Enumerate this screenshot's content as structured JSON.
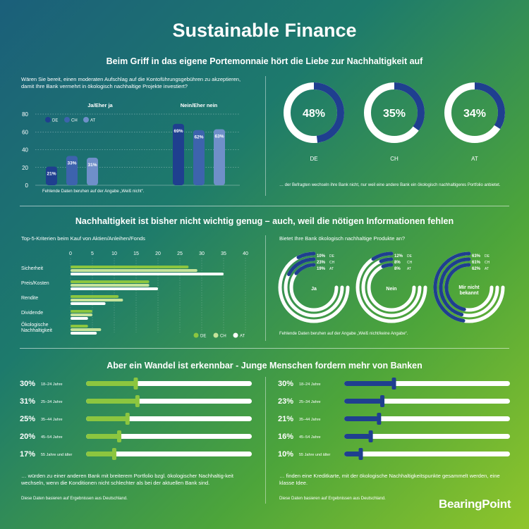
{
  "title": "Sustainable Finance",
  "colors": {
    "DE": "#1f3f8f",
    "CH": "#3d63ad",
    "AT": "#6f8fc9",
    "green": "#8cc63f",
    "lightgreen": "#c6e39a",
    "white": "#ffffff",
    "track": "#ffffff"
  },
  "section1": {
    "heading": "Beim Griff in das eigene Portemonnaie hört die Liebe zur Nachhaltigkeit auf",
    "question": "Wären Sie bereit, einen moderaten Aufschlag auf die Kontoführungsgebühren zu akzeptieren, damit Ihre Bank vermehrt in ökologisch nachhaltige Projekte investiert?",
    "footnote": "Fehlende Daten beruhen auf der Angabe „Weiß nicht“.",
    "donut_caption": "… der Befragten wechseln ihre Bank nicht, nur weil eine andere Bank ein ökologisch nachhaltigeres Portfolio anbietet."
  },
  "section2": {
    "heading": "Nachhaltigkeit ist bisher nicht wichtig genug – auch, weil die nötigen Informationen fehlen",
    "left_title": "Top-5-Kriterien beim Kauf von Aktien/Anleihen/Fonds",
    "right_title": "Bietet Ihre Bank ökologisch nachhaltige Produkte an?",
    "footnote": "Fehlende Daten beruhen auf der Angabe „Weiß nicht/keine Angabe“."
  },
  "section3": {
    "heading": "Aber ein Wandel ist erkennbar - Junge Menschen fordern mehr von Banken",
    "left_caption": "… würden zu einer anderen Bank mit breiterem Portfolio bzgl. ökologischer Nachhaltig-keit wechseln, wenn die Konditionen nicht schlechter als bei der aktuellen Bank sind.",
    "right_caption": "… finden eine Kreditkarte, mit der ökologische Nachhaltigkeitspunkte gesammelt werden, eine klasse Idee.",
    "left_note": "Diese Daten basieren auf Ergebnissen aus Deutschland.",
    "right_note": "Diese Daten basieren auf Ergebnissen aus Deutschland."
  },
  "logo": "BearingPoint",
  "chart_data": [
    {
      "type": "bar",
      "groups": [
        "Ja/Eher ja",
        "Nein/Eher nein"
      ],
      "series": [
        {
          "name": "DE",
          "values": [
            21,
            69
          ]
        },
        {
          "name": "CH",
          "values": [
            33,
            62
          ]
        },
        {
          "name": "AT",
          "values": [
            31,
            63
          ]
        }
      ],
      "ylim": [
        0,
        80
      ],
      "yticks": [
        0,
        20,
        40,
        60,
        80
      ]
    },
    {
      "type": "pie",
      "donuts": [
        {
          "label": "DE",
          "value": 48,
          "text": "48%"
        },
        {
          "label": "CH",
          "value": 35,
          "text": "35%"
        },
        {
          "label": "AT",
          "value": 34,
          "text": "34%"
        }
      ]
    },
    {
      "type": "bar",
      "orientation": "horizontal",
      "categories": [
        "Sicherheit",
        "Preis/Kosten",
        "Rendite",
        "Dividende",
        "Ökologische Nachhaltigkeit"
      ],
      "series": [
        {
          "name": "DE",
          "values": [
            27,
            18,
            11,
            5,
            4
          ]
        },
        {
          "name": "CH",
          "values": [
            29,
            18,
            12,
            5,
            7
          ]
        },
        {
          "name": "AT",
          "values": [
            35,
            20,
            8,
            4,
            6
          ]
        }
      ],
      "xlim": [
        0,
        40
      ],
      "xticks": [
        0,
        5,
        10,
        15,
        20,
        25,
        30,
        35,
        40
      ]
    },
    {
      "type": "pie",
      "style": "radial",
      "groups": [
        {
          "label": "Ja",
          "values": [
            {
              "name": "DE",
              "value": 10,
              "text": "10%"
            },
            {
              "name": "CH",
              "value": 23,
              "text": "23%"
            },
            {
              "name": "AT",
              "value": 19,
              "text": "19%"
            }
          ]
        },
        {
          "label": "Nein",
          "values": [
            {
              "name": "DE",
              "value": 12,
              "text": "12%"
            },
            {
              "name": "CH",
              "value": 8,
              "text": "8%"
            },
            {
              "name": "AT",
              "value": 8,
              "text": "8%"
            }
          ]
        },
        {
          "label": "Mir nicht bekannt",
          "values": [
            {
              "name": "DE",
              "value": 63,
              "text": "63%"
            },
            {
              "name": "CH",
              "value": 61,
              "text": "61%"
            },
            {
              "name": "AT",
              "value": 62,
              "text": "62%"
            }
          ]
        }
      ]
    },
    {
      "type": "bar",
      "style": "slider",
      "categories": [
        "18–24 Jahre",
        "25–34 Jahre",
        "35–44 Jahre",
        "45–54 Jahre",
        "55 Jahre und älter"
      ],
      "values": [
        30,
        31,
        25,
        20,
        17
      ],
      "labels": [
        "30%",
        "31%",
        "25%",
        "20%",
        "17%"
      ]
    },
    {
      "type": "bar",
      "style": "slider",
      "categories": [
        "18–24 Jahre",
        "25–34 Jahre",
        "35–44 Jahre",
        "45–54 Jahre",
        "55 Jahre und älter"
      ],
      "values": [
        30,
        23,
        21,
        16,
        10
      ],
      "labels": [
        "30%",
        "23%",
        "21%",
        "16%",
        "10%"
      ]
    }
  ]
}
